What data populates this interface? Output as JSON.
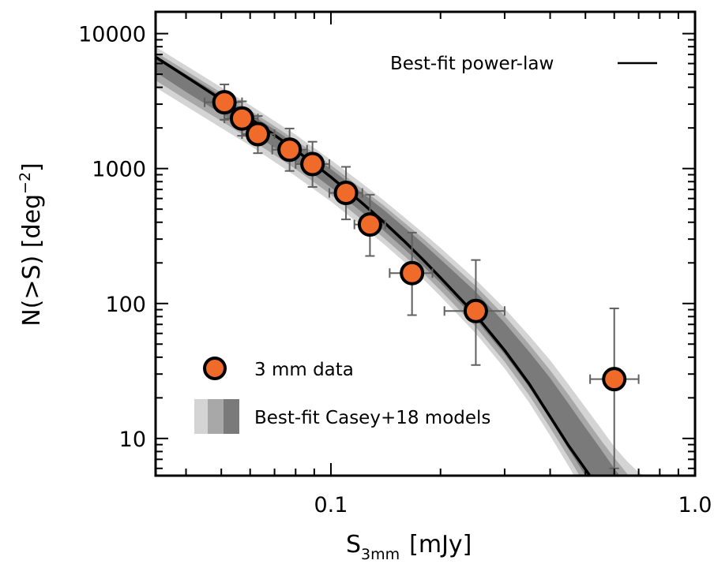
{
  "chart_data": {
    "type": "scatter",
    "title": "",
    "xlabel_main": "S",
    "xlabel_sub": "3mm",
    "xlabel_unit": "[mJy]",
    "ylabel_main": "N(>S)  [deg",
    "ylabel_sup": "−2",
    "ylabel_close": "]",
    "x_scale": "log",
    "y_scale": "log",
    "xlim": [
      0.033,
      1.0
    ],
    "ylim": [
      5.3,
      14500
    ],
    "x_ticks": [
      {
        "value": 0.1,
        "label": "0.1"
      },
      {
        "value": 1.0,
        "label": "1.0"
      }
    ],
    "y_ticks": [
      {
        "value": 10,
        "label": "10"
      },
      {
        "value": 100,
        "label": "100"
      },
      {
        "value": 1000,
        "label": "1000"
      },
      {
        "value": 10000,
        "label": "10000"
      }
    ],
    "grid": false,
    "legend_placement": "top-right and bottom-left",
    "colors": {
      "points": "#f06a2a",
      "point_edge": "#000000",
      "errorbar": "#606060",
      "band_light": "#d4d4d4",
      "band_mid": "#a8a8a8",
      "band_dark": "#7a7a7a",
      "fit_line": "#000000"
    },
    "series": [
      {
        "name": "3 mm data",
        "kind": "points",
        "points": [
          {
            "x": 0.051,
            "y": 3100,
            "xerr": [
              0.045,
              0.057
            ],
            "yerr": [
              2300,
              4200
            ]
          },
          {
            "x": 0.057,
            "y": 2350,
            "xerr": [
              0.051,
              0.063
            ],
            "yerr": [
              1750,
              3150
            ]
          },
          {
            "x": 0.063,
            "y": 1800,
            "xerr": [
              0.057,
              0.07
            ],
            "yerr": [
              1300,
              2450
            ]
          },
          {
            "x": 0.077,
            "y": 1380,
            "xerr": [
              0.069,
              0.086
            ],
            "yerr": [
              960,
              1980
            ]
          },
          {
            "x": 0.089,
            "y": 1080,
            "xerr": [
              0.08,
              0.099
            ],
            "yerr": [
              730,
              1580
            ]
          },
          {
            "x": 0.11,
            "y": 660,
            "xerr": [
              0.099,
              0.122
            ],
            "yerr": [
              420,
              1030
            ]
          },
          {
            "x": 0.128,
            "y": 385,
            "xerr": [
              0.116,
              0.141
            ],
            "yerr": [
              225,
              640
            ]
          },
          {
            "x": 0.167,
            "y": 168,
            "xerr": [
              0.145,
              0.19
            ],
            "yerr": [
              82,
              335
            ]
          },
          {
            "x": 0.25,
            "y": 88,
            "xerr": [
              0.205,
              0.3
            ],
            "yerr": [
              35,
              210
            ]
          },
          {
            "x": 0.6,
            "y": 27.5,
            "xerr": [
              0.515,
              0.7
            ],
            "yerr": [
              6,
              92
            ]
          }
        ]
      },
      {
        "name": "Best-fit power-law",
        "kind": "line",
        "x": [
          0.033,
          0.04,
          0.05,
          0.06,
          0.07,
          0.08,
          0.09,
          0.1,
          0.12,
          0.14,
          0.16,
          0.18,
          0.2,
          0.25,
          0.3,
          0.35,
          0.4,
          0.45,
          0.5,
          0.55
        ],
        "y": [
          6700,
          4800,
          3250,
          2350,
          1770,
          1370,
          1080,
          865,
          575,
          400,
          285,
          208,
          155,
          82,
          45,
          25.5,
          14.5,
          8.8,
          5.9,
          4.1
        ]
      },
      {
        "name": "Best-fit Casey+18 models",
        "kind": "band",
        "x": [
          0.033,
          0.04,
          0.05,
          0.06,
          0.07,
          0.08,
          0.09,
          0.1,
          0.12,
          0.14,
          0.16,
          0.18,
          0.2,
          0.25,
          0.3,
          0.35,
          0.4,
          0.45,
          0.5,
          0.55,
          0.6,
          0.65,
          0.7,
          0.75,
          0.8
        ],
        "outer_low": [
          4000,
          2900,
          2000,
          1480,
          1120,
          880,
          700,
          570,
          385,
          275,
          200,
          150,
          113,
          60,
          33,
          18.5,
          10.5,
          6.2,
          3.8,
          2.5,
          2.0,
          2.0,
          2.0,
          2.0,
          2.0
        ],
        "outer_high": [
          8000,
          5800,
          4000,
          2950,
          2250,
          1780,
          1420,
          1160,
          800,
          580,
          430,
          330,
          258,
          150,
          92,
          58,
          38,
          25,
          17,
          12,
          8.7,
          6.8,
          5.6,
          5.0,
          5.0
        ],
        "mid_low": [
          4500,
          3250,
          2250,
          1650,
          1260,
          990,
          790,
          640,
          430,
          305,
          222,
          166,
          125,
          67,
          37,
          21,
          12,
          7.2,
          4.5,
          3.0,
          2.2,
          2.0,
          2.0,
          2.0,
          2.0
        ],
        "mid_high": [
          7300,
          5300,
          3650,
          2700,
          2060,
          1620,
          1300,
          1060,
          730,
          530,
          392,
          300,
          232,
          135,
          81,
          50,
          32,
          21,
          14,
          9.8,
          7.2,
          5.5,
          4.5,
          4.0,
          4.0
        ],
        "inner_low": [
          5200,
          3700,
          2550,
          1880,
          1430,
          1120,
          895,
          725,
          490,
          345,
          250,
          187,
          142,
          76,
          42,
          24,
          13.8,
          8.3,
          5.3,
          3.6,
          2.5,
          2.0,
          2.0,
          2.0,
          2.0
        ],
        "inner_high": [
          6900,
          5000,
          3450,
          2550,
          1940,
          1520,
          1220,
          990,
          680,
          492,
          362,
          275,
          212,
          122,
          72,
          44,
          28,
          18,
          12,
          8.4,
          6.0,
          4.5,
          3.5,
          3.0,
          3.0
        ]
      }
    ],
    "legend": {
      "top_right": {
        "label": "Best-fit power-law"
      },
      "bottom_left": [
        {
          "label": "3 mm data",
          "marker": "circle"
        },
        {
          "label": "Best-fit Casey+18 models",
          "marker": "band"
        }
      ]
    }
  }
}
